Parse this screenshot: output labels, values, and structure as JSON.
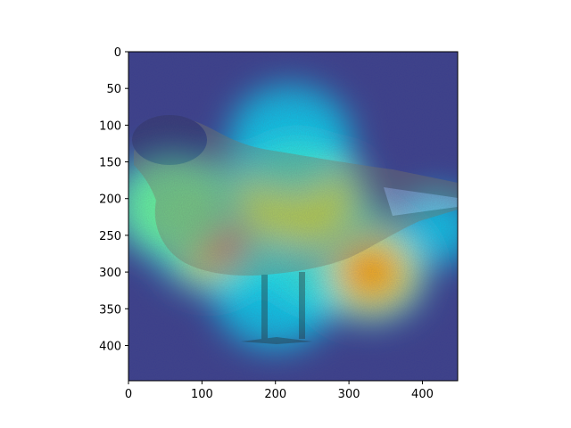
{
  "chart_data": {
    "type": "heatmap",
    "title": "",
    "xlabel": "",
    "ylabel": "",
    "description_image": "bird",
    "colormap": "jet",
    "xlim": [
      0,
      448
    ],
    "ylim": [
      448,
      0
    ],
    "xticks": [
      0,
      100,
      200,
      300,
      400
    ],
    "yticks": [
      0,
      50,
      100,
      150,
      200,
      250,
      300,
      350,
      400
    ],
    "grid": false,
    "hotspots": [
      {
        "x": 270,
        "y": 270,
        "intensity": 1.0,
        "spread": 70
      },
      {
        "x": 130,
        "y": 240,
        "intensity": 0.95,
        "spread": 75
      },
      {
        "x": 330,
        "y": 300,
        "intensity": 0.85,
        "spread": 55
      },
      {
        "x": 230,
        "y": 200,
        "intensity": 0.7,
        "spread": 70
      },
      {
        "x": 60,
        "y": 210,
        "intensity": 0.55,
        "spread": 60
      },
      {
        "x": 220,
        "y": 120,
        "intensity": 0.45,
        "spread": 60
      },
      {
        "x": 420,
        "y": 240,
        "intensity": 0.4,
        "spread": 40
      },
      {
        "x": 200,
        "y": 330,
        "intensity": 0.45,
        "spread": 60
      }
    ]
  }
}
